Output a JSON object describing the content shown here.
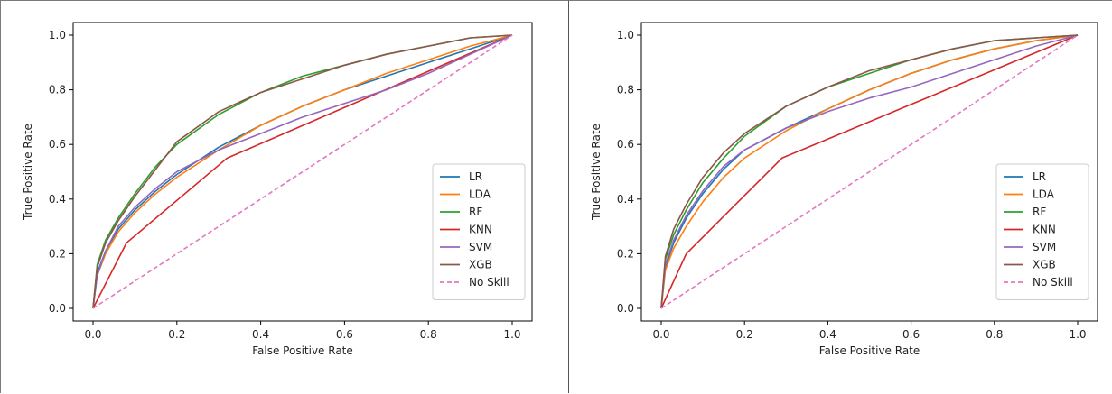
{
  "colors": {
    "LR": "#1f77b4",
    "LDA": "#ff7f0e",
    "RF": "#2ca02c",
    "KNN": "#d62728",
    "SVM": "#9467bd",
    "XGB": "#8c564b",
    "No Skill": "#e377c2"
  },
  "chart_data": [
    {
      "type": "line",
      "title": "",
      "xlabel": "False Positive Rate",
      "ylabel": "True Positive Rate",
      "xlim": [
        0.0,
        1.0
      ],
      "ylim": [
        0.0,
        1.0
      ],
      "xticks": [
        "0.0",
        "0.2",
        "0.4",
        "0.6",
        "0.8",
        "1.0"
      ],
      "yticks": [
        "0.0",
        "0.2",
        "0.4",
        "0.6",
        "0.8",
        "1.0"
      ],
      "legend_position": "lower-right",
      "series": [
        {
          "name": "LR",
          "x": [
            0,
            0.01,
            0.03,
            0.06,
            0.1,
            0.15,
            0.2,
            0.3,
            0.4,
            0.5,
            0.6,
            0.7,
            0.8,
            0.9,
            1.0
          ],
          "y": [
            0,
            0.13,
            0.21,
            0.29,
            0.36,
            0.43,
            0.49,
            0.59,
            0.67,
            0.74,
            0.8,
            0.85,
            0.9,
            0.95,
            1.0
          ]
        },
        {
          "name": "LDA",
          "x": [
            0,
            0.01,
            0.03,
            0.06,
            0.1,
            0.15,
            0.2,
            0.3,
            0.4,
            0.5,
            0.6,
            0.7,
            0.8,
            0.9,
            1.0
          ],
          "y": [
            0,
            0.12,
            0.2,
            0.28,
            0.35,
            0.42,
            0.48,
            0.58,
            0.67,
            0.74,
            0.8,
            0.86,
            0.91,
            0.96,
            1.0
          ]
        },
        {
          "name": "RF",
          "x": [
            0,
            0.01,
            0.03,
            0.06,
            0.1,
            0.15,
            0.2,
            0.3,
            0.4,
            0.5,
            0.6,
            0.7,
            0.8,
            0.9,
            1.0
          ],
          "y": [
            0,
            0.16,
            0.25,
            0.33,
            0.42,
            0.52,
            0.6,
            0.71,
            0.79,
            0.85,
            0.89,
            0.93,
            0.96,
            0.99,
            1.0
          ]
        },
        {
          "name": "KNN",
          "x": [
            0,
            0.08,
            0.32,
            1.0
          ],
          "y": [
            0,
            0.24,
            0.55,
            1.0
          ]
        },
        {
          "name": "SVM",
          "x": [
            0,
            0.01,
            0.03,
            0.06,
            0.1,
            0.15,
            0.2,
            0.3,
            0.4,
            0.5,
            0.6,
            0.7,
            0.8,
            0.9,
            1.0
          ],
          "y": [
            0,
            0.12,
            0.21,
            0.3,
            0.37,
            0.44,
            0.5,
            0.58,
            0.64,
            0.7,
            0.75,
            0.8,
            0.86,
            0.93,
            1.0
          ]
        },
        {
          "name": "XGB",
          "x": [
            0,
            0.01,
            0.03,
            0.06,
            0.1,
            0.15,
            0.2,
            0.3,
            0.4,
            0.5,
            0.6,
            0.7,
            0.8,
            0.9,
            1.0
          ],
          "y": [
            0,
            0.15,
            0.24,
            0.32,
            0.41,
            0.51,
            0.61,
            0.72,
            0.79,
            0.84,
            0.89,
            0.93,
            0.96,
            0.99,
            1.0
          ]
        },
        {
          "name": "No Skill",
          "x": [
            0,
            1.0
          ],
          "y": [
            0,
            1.0
          ],
          "dashed": true
        }
      ]
    },
    {
      "type": "line",
      "title": "",
      "xlabel": "False Positive Rate",
      "ylabel": "True Positive Rate",
      "xlim": [
        0.0,
        1.0
      ],
      "ylim": [
        0.0,
        1.0
      ],
      "xticks": [
        "0.0",
        "0.2",
        "0.4",
        "0.6",
        "0.8",
        "1.0"
      ],
      "yticks": [
        "0.0",
        "0.2",
        "0.4",
        "0.6",
        "0.8",
        "1.0"
      ],
      "legend_position": "lower-right",
      "series": [
        {
          "name": "LR",
          "x": [
            0,
            0.01,
            0.03,
            0.06,
            0.1,
            0.15,
            0.2,
            0.3,
            0.4,
            0.5,
            0.6,
            0.7,
            0.8,
            0.9,
            1.0
          ],
          "y": [
            0,
            0.15,
            0.24,
            0.33,
            0.42,
            0.51,
            0.58,
            0.66,
            0.73,
            0.8,
            0.86,
            0.91,
            0.95,
            0.98,
            1.0
          ]
        },
        {
          "name": "LDA",
          "x": [
            0,
            0.01,
            0.03,
            0.06,
            0.1,
            0.15,
            0.2,
            0.3,
            0.4,
            0.5,
            0.6,
            0.7,
            0.8,
            0.9,
            1.0
          ],
          "y": [
            0,
            0.14,
            0.22,
            0.3,
            0.39,
            0.48,
            0.55,
            0.65,
            0.73,
            0.8,
            0.86,
            0.91,
            0.95,
            0.98,
            1.0
          ]
        },
        {
          "name": "RF",
          "x": [
            0,
            0.01,
            0.03,
            0.06,
            0.1,
            0.15,
            0.2,
            0.3,
            0.4,
            0.5,
            0.6,
            0.7,
            0.8,
            0.9,
            1.0
          ],
          "y": [
            0,
            0.18,
            0.27,
            0.36,
            0.46,
            0.55,
            0.63,
            0.74,
            0.81,
            0.86,
            0.91,
            0.95,
            0.98,
            0.99,
            1.0
          ]
        },
        {
          "name": "KNN",
          "x": [
            0,
            0.06,
            0.29,
            1.0
          ],
          "y": [
            0,
            0.2,
            0.55,
            1.0
          ]
        },
        {
          "name": "SVM",
          "x": [
            0,
            0.01,
            0.03,
            0.06,
            0.1,
            0.15,
            0.2,
            0.3,
            0.4,
            0.5,
            0.6,
            0.7,
            0.8,
            0.9,
            1.0
          ],
          "y": [
            0,
            0.16,
            0.25,
            0.34,
            0.43,
            0.52,
            0.58,
            0.66,
            0.72,
            0.77,
            0.81,
            0.86,
            0.91,
            0.96,
            1.0
          ]
        },
        {
          "name": "XGB",
          "x": [
            0,
            0.01,
            0.03,
            0.06,
            0.1,
            0.15,
            0.2,
            0.3,
            0.4,
            0.5,
            0.6,
            0.7,
            0.8,
            0.9,
            1.0
          ],
          "y": [
            0,
            0.19,
            0.29,
            0.38,
            0.48,
            0.57,
            0.64,
            0.74,
            0.81,
            0.87,
            0.91,
            0.95,
            0.98,
            0.99,
            1.0
          ]
        },
        {
          "name": "No Skill",
          "x": [
            0,
            1.0
          ],
          "y": [
            0,
            1.0
          ],
          "dashed": true
        }
      ]
    }
  ]
}
